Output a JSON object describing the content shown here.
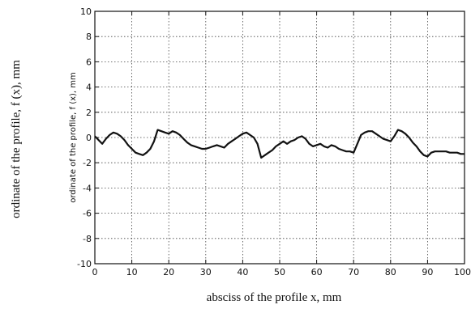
{
  "chart_data": {
    "type": "line",
    "title": "",
    "outer_xlabel": "absciss of the profile x, mm",
    "outer_ylabel": "ordinate of the profile, f (x), mm",
    "inner_ylabel": "ordinate of the profile, f (x), mm",
    "xlim": [
      0,
      100
    ],
    "ylim": [
      -10,
      10
    ],
    "xticks": [
      0,
      10,
      20,
      30,
      40,
      50,
      60,
      70,
      80,
      90,
      100
    ],
    "yticks": [
      10,
      8,
      6,
      4,
      2,
      0,
      -2,
      -4,
      -6,
      -8,
      -10
    ],
    "xtick_labels": [
      "0",
      "10",
      "20",
      "30",
      "40",
      "50",
      "60",
      "70",
      "80",
      "90",
      "100"
    ],
    "ytick_labels": [
      "10",
      "8",
      "6",
      "4",
      "2",
      "0",
      "-2",
      "-4",
      "-6",
      "-8",
      "-10"
    ],
    "grid": true,
    "legend": "none",
    "line_color": "#111111",
    "series": [
      {
        "x": [
          0,
          1,
          2,
          3,
          4,
          5,
          6,
          7,
          8,
          9,
          10,
          11,
          12,
          13,
          14,
          15,
          16,
          17,
          18,
          19,
          20,
          21,
          22,
          23,
          24,
          25,
          26,
          27,
          28,
          29,
          30,
          31,
          32,
          33,
          34,
          35,
          36,
          37,
          38,
          39,
          40,
          41,
          42,
          43,
          44,
          45,
          46,
          47,
          48,
          49,
          50,
          51,
          52,
          53,
          54,
          55,
          56,
          57,
          58,
          59,
          60,
          61,
          62,
          63,
          64,
          65,
          66,
          67,
          68,
          69,
          70,
          71,
          72,
          73,
          74,
          75,
          76,
          77,
          78,
          79,
          80,
          81,
          82,
          83,
          84,
          85,
          86,
          87,
          88,
          89,
          90,
          91,
          92,
          93,
          94,
          95,
          96,
          97,
          98,
          99,
          100
        ],
        "y": [
          0.1,
          -0.2,
          -0.5,
          -0.1,
          0.2,
          0.4,
          0.3,
          0.1,
          -0.2,
          -0.6,
          -0.9,
          -1.2,
          -1.3,
          -1.4,
          -1.2,
          -0.9,
          -0.3,
          0.6,
          0.5,
          0.4,
          0.3,
          0.5,
          0.4,
          0.2,
          -0.1,
          -0.4,
          -0.6,
          -0.7,
          -0.8,
          -0.9,
          -0.9,
          -0.8,
          -0.7,
          -0.6,
          -0.7,
          -0.8,
          -0.5,
          -0.3,
          -0.1,
          0.1,
          0.3,
          0.4,
          0.2,
          0.0,
          -0.5,
          -1.6,
          -1.4,
          -1.2,
          -1.0,
          -0.7,
          -0.5,
          -0.3,
          -0.5,
          -0.3,
          -0.2,
          0.0,
          0.1,
          -0.1,
          -0.5,
          -0.7,
          -0.6,
          -0.5,
          -0.7,
          -0.8,
          -0.6,
          -0.7,
          -0.9,
          -1.0,
          -1.1,
          -1.1,
          -1.2,
          -0.5,
          0.2,
          0.4,
          0.5,
          0.5,
          0.3,
          0.1,
          -0.1,
          -0.2,
          -0.3,
          0.1,
          0.6,
          0.5,
          0.3,
          0.0,
          -0.4,
          -0.7,
          -1.1,
          -1.4,
          -1.5,
          -1.2,
          -1.1,
          -1.1,
          -1.1,
          -1.1,
          -1.2,
          -1.2,
          -1.2,
          -1.3,
          -1.3
        ]
      }
    ]
  }
}
